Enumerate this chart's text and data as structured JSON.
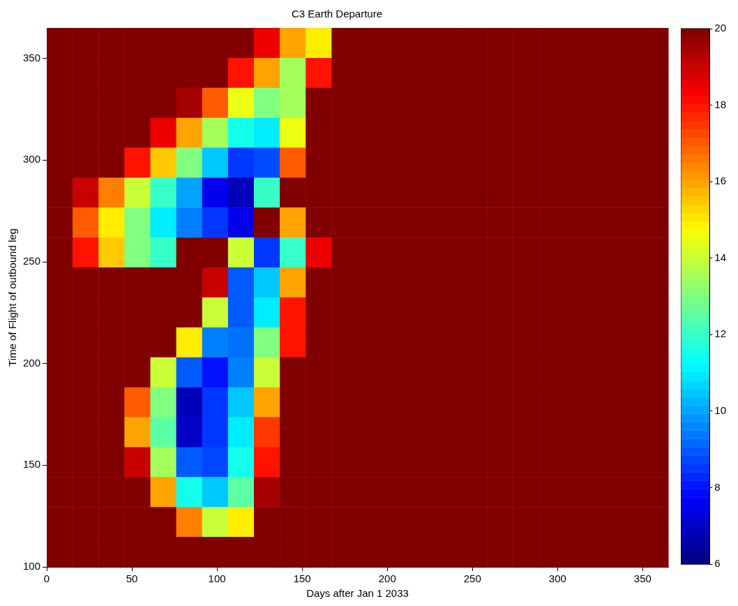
{
  "chart_data": {
    "type": "heatmap",
    "title": "C3 Earth Departure",
    "xlabel": "Days after Jan 1 2033",
    "ylabel": "Time of Flight of outbound leg",
    "xlim": [
      0,
      365
    ],
    "ylim": [
      100,
      365
    ],
    "xticks": [
      0,
      50,
      100,
      150,
      200,
      250,
      300,
      350
    ],
    "yticks": [
      100,
      150,
      200,
      250,
      300,
      350
    ],
    "clim": [
      6,
      20
    ],
    "cticks": [
      6,
      8,
      10,
      12,
      14,
      16,
      18,
      20
    ],
    "cells": [
      [
        20,
        20,
        20,
        20,
        20,
        20,
        20,
        20,
        18.5,
        16,
        15,
        20,
        20,
        20,
        20,
        20,
        20,
        20,
        20,
        20,
        20,
        20,
        20,
        20
      ],
      [
        20,
        20,
        20,
        20,
        20,
        20,
        20,
        18,
        16,
        13.5,
        18,
        20,
        20,
        20,
        20,
        20,
        20,
        20,
        20,
        20,
        20,
        20,
        20,
        20
      ],
      [
        20,
        20,
        20,
        20,
        20,
        19.5,
        17,
        14.5,
        13,
        13.5,
        20,
        20,
        20,
        20,
        20,
        20,
        20,
        20,
        20,
        20,
        20,
        20,
        20,
        20
      ],
      [
        20,
        20,
        20,
        20,
        18.5,
        16,
        13.5,
        11.5,
        11,
        14.5,
        20,
        20,
        20,
        20,
        20,
        20,
        20,
        20,
        20,
        20,
        20,
        20,
        20,
        20
      ],
      [
        20,
        20,
        20,
        18,
        15.5,
        13,
        10.5,
        8.5,
        8.8,
        17,
        20,
        20,
        20,
        20,
        20,
        20,
        20,
        20,
        20,
        20,
        20,
        20,
        20,
        20
      ],
      [
        20,
        19,
        16.5,
        14,
        12,
        10,
        7.5,
        6.8,
        12,
        20,
        20,
        20,
        20,
        20,
        20,
        20,
        20,
        20,
        20,
        20,
        20,
        20,
        20,
        20
      ],
      [
        20,
        17,
        15,
        13,
        11,
        9.5,
        8.5,
        7.5,
        20,
        16,
        20,
        20,
        20,
        20,
        20,
        20,
        20,
        20,
        20,
        20,
        20,
        20,
        20,
        20
      ],
      [
        20,
        18,
        15.5,
        13,
        12,
        20,
        20,
        14,
        8.5,
        12,
        18.5,
        20,
        20,
        20,
        20,
        20,
        20,
        20,
        20,
        20,
        20,
        20,
        20,
        20
      ],
      [
        20,
        20,
        20,
        20,
        20,
        20,
        19,
        9,
        10.5,
        16,
        20,
        20,
        20,
        20,
        20,
        20,
        20,
        20,
        20,
        20,
        20,
        20,
        20,
        20
      ],
      [
        20,
        20,
        20,
        20,
        20,
        20,
        14,
        9,
        11,
        18,
        20,
        20,
        20,
        20,
        20,
        20,
        20,
        20,
        20,
        20,
        20,
        20,
        20,
        20
      ],
      [
        20,
        20,
        20,
        20,
        20,
        15,
        9.5,
        9.3,
        13,
        18,
        20,
        20,
        20,
        20,
        20,
        20,
        20,
        20,
        20,
        20,
        20,
        20,
        20,
        20
      ],
      [
        20,
        20,
        20,
        20,
        14,
        9,
        8,
        9.5,
        14,
        20,
        20,
        20,
        20,
        20,
        20,
        20,
        20,
        20,
        20,
        20,
        20,
        20,
        20,
        20
      ],
      [
        20,
        20,
        20,
        17,
        13,
        6.8,
        8.5,
        10.5,
        16,
        20,
        20,
        20,
        20,
        20,
        20,
        20,
        20,
        20,
        20,
        20,
        20,
        20,
        20,
        20
      ],
      [
        20,
        20,
        20,
        16,
        12.5,
        7,
        8.5,
        11,
        17.5,
        20,
        20,
        20,
        20,
        20,
        20,
        20,
        20,
        20,
        20,
        20,
        20,
        20,
        20,
        20
      ],
      [
        20,
        20,
        20,
        19,
        13.5,
        9,
        8.7,
        11.5,
        18,
        20,
        20,
        20,
        20,
        20,
        20,
        20,
        20,
        20,
        20,
        20,
        20,
        20,
        20,
        20
      ],
      [
        20,
        20,
        20,
        20,
        16,
        11.5,
        10.5,
        12.5,
        19.5,
        20,
        20,
        20,
        20,
        20,
        20,
        20,
        20,
        20,
        20,
        20,
        20,
        20,
        20,
        20
      ],
      [
        20,
        20,
        20,
        20,
        20,
        16.5,
        14,
        15,
        20,
        20,
        20,
        20,
        20,
        20,
        20,
        20,
        20,
        20,
        20,
        20,
        20,
        20,
        20,
        20
      ],
      [
        20,
        20,
        20,
        20,
        20,
        20,
        20,
        20,
        20,
        20,
        20,
        20,
        20,
        20,
        20,
        20,
        20,
        20,
        20,
        20,
        20,
        20,
        20,
        20
      ]
    ]
  }
}
